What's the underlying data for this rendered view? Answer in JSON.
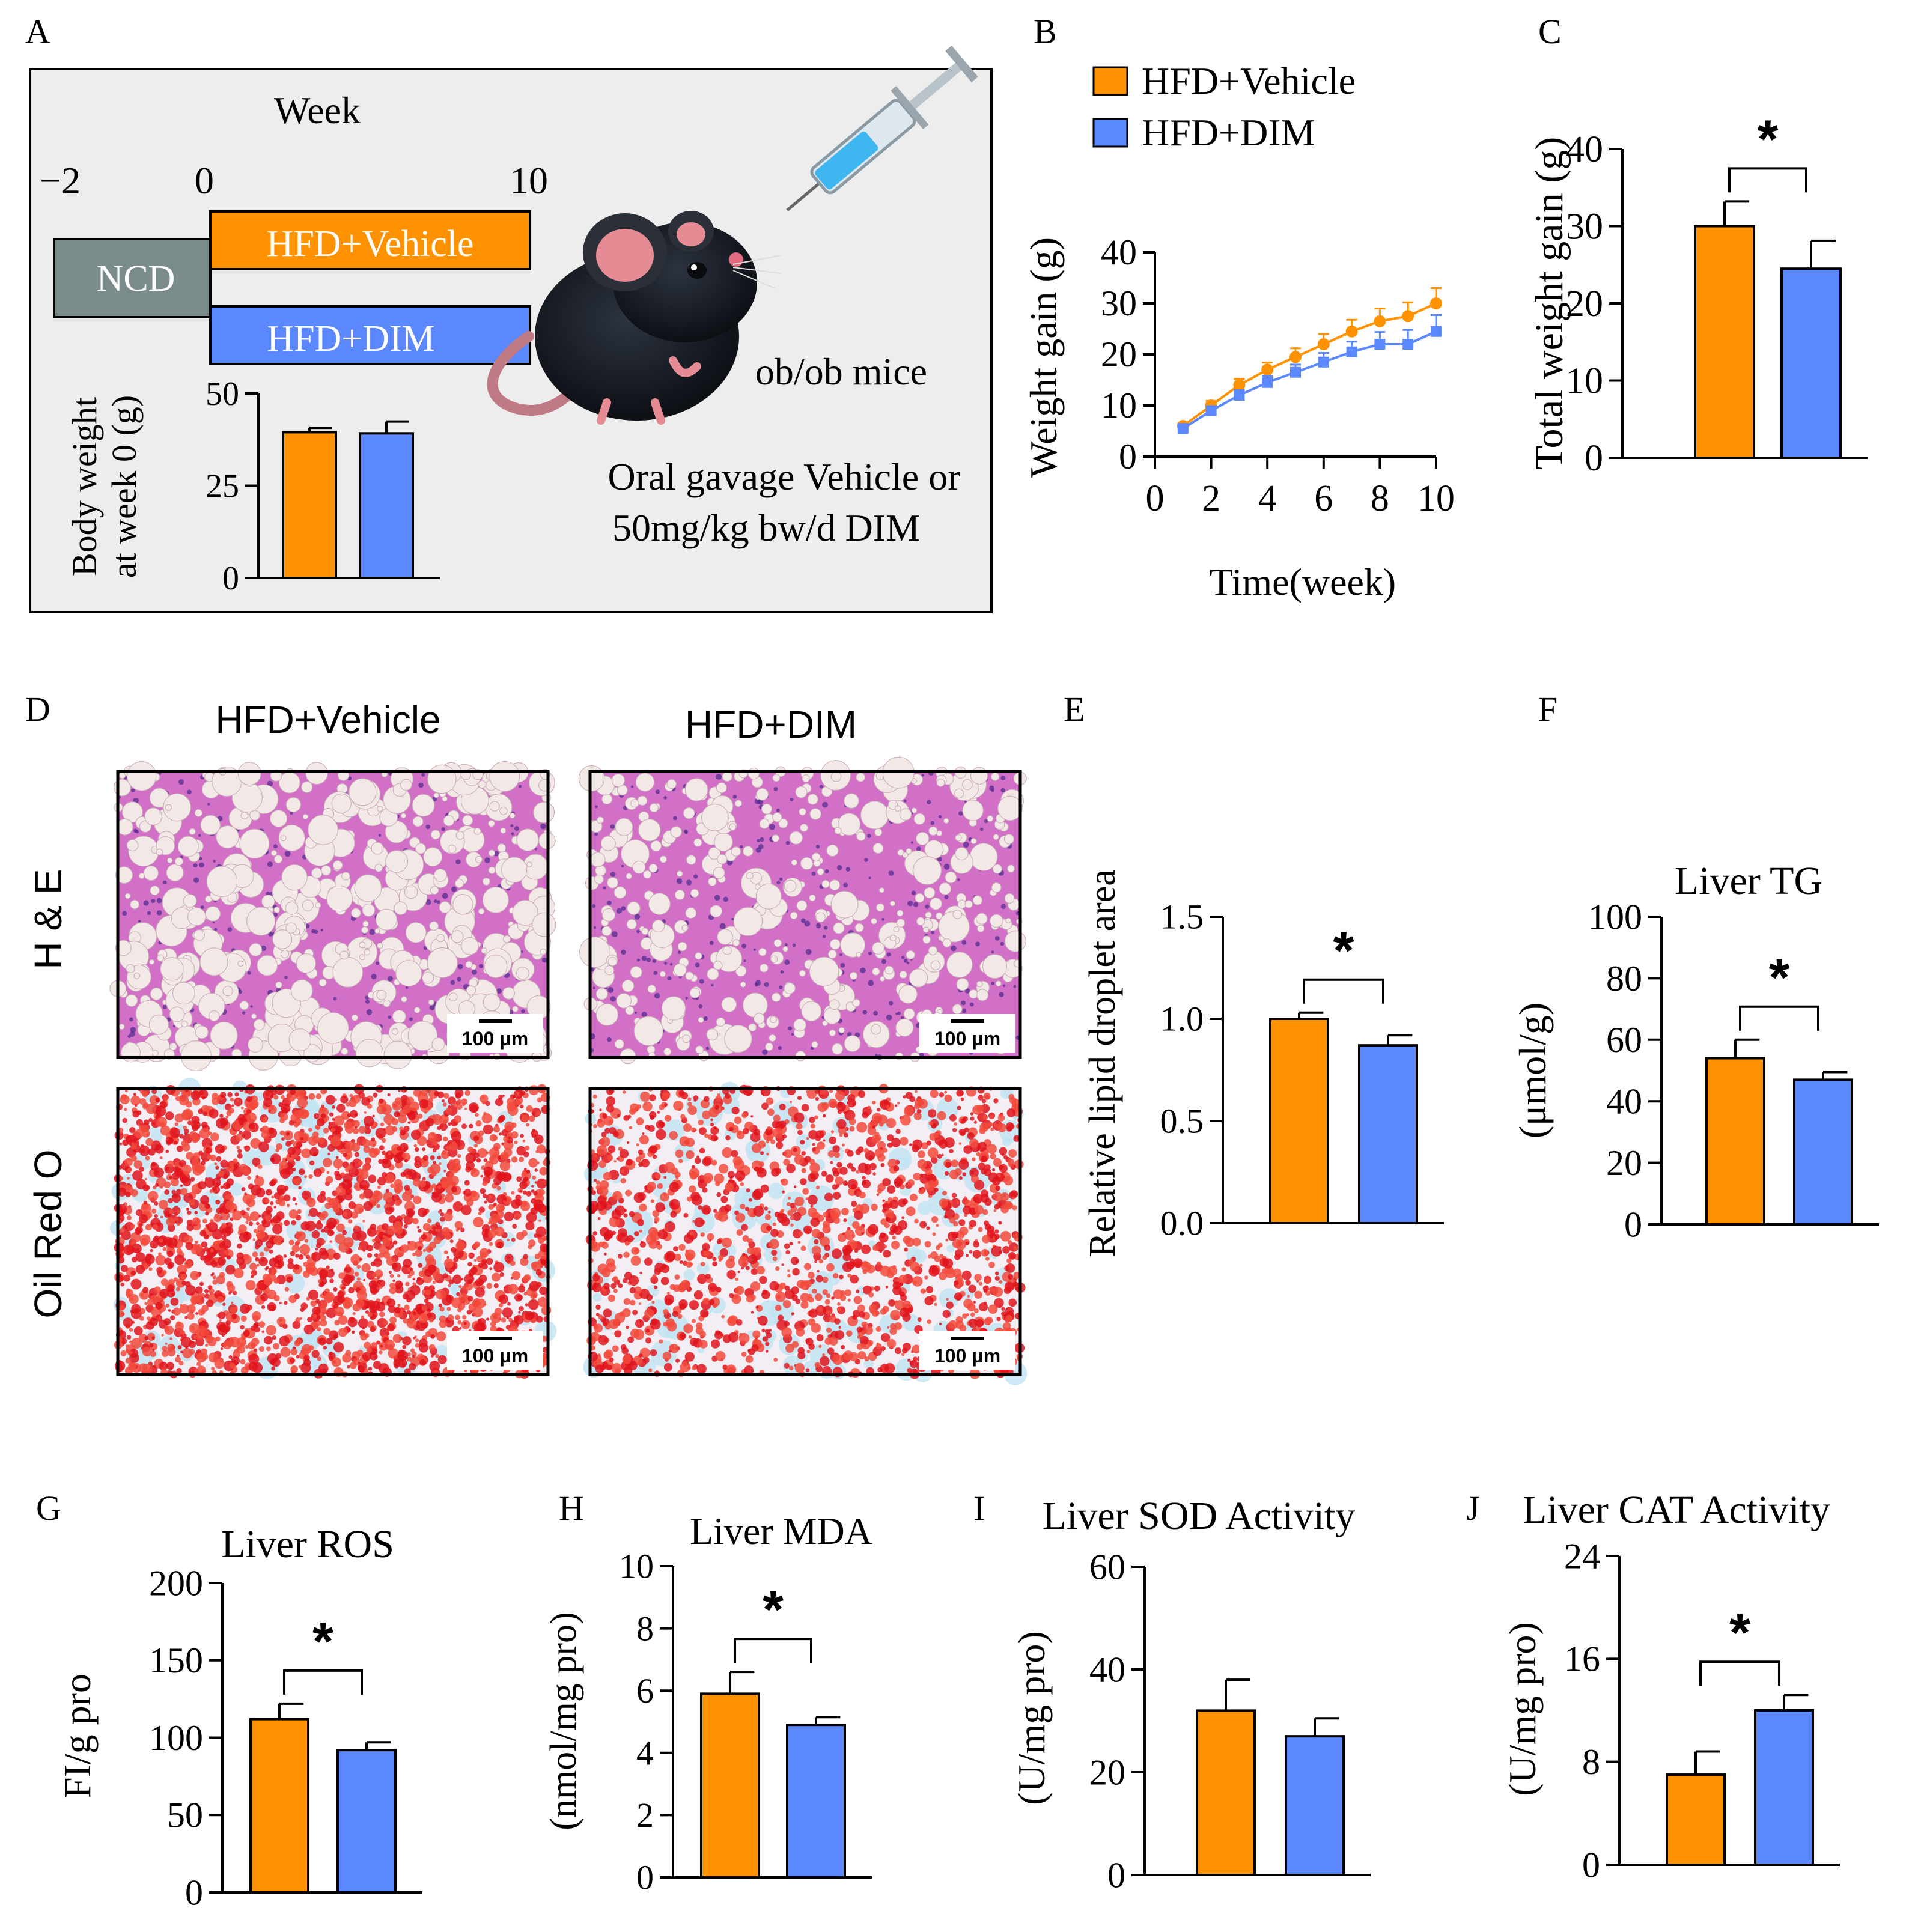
{
  "colors": {
    "vehicle": "#FF9200",
    "dim": "#5B87FF",
    "ncd": "#7A8B8C",
    "panel_bg": "#EDEDED",
    "axis": "#000000"
  },
  "panel_letters": [
    "A",
    "B",
    "C",
    "D",
    "E",
    "F",
    "G",
    "H",
    "I",
    "J"
  ],
  "panel_a": {
    "week_label": "Week",
    "ticks": [
      "−2",
      "0",
      "10"
    ],
    "ncd_label": "NCD",
    "vehicle_label": "HFD+Vehicle",
    "dim_label": "HFD+DIM",
    "mouse_label": "ob/ob mice",
    "gavage_line1": "Oral gavage Vehicle or",
    "gavage_line2": "50mg/kg bw/d DIM"
  },
  "legend": {
    "vehicle": "HFD+Vehicle",
    "dim": "HFD+DIM"
  },
  "histology": {
    "col_labels": [
      "HFD+Vehicle",
      "HFD+DIM"
    ],
    "row_labels": [
      "H & E",
      "Oil Red O"
    ],
    "scale_bar": "100 μm"
  },
  "chart_data": [
    {
      "id": "A_inset",
      "type": "bar",
      "ylabel_lines": [
        "Body weight",
        "at week 0 (g)"
      ],
      "categories": [
        "HFD+Vehicle",
        "HFD+DIM"
      ],
      "values": [
        39.5,
        39.2
      ],
      "errors": [
        1.2,
        3.2
      ],
      "ylim": [
        0,
        50
      ],
      "yticks": [
        0,
        25,
        50
      ],
      "tick_labels": [
        "0",
        "25",
        "50"
      ]
    },
    {
      "id": "B",
      "type": "line",
      "xlabel": "Time(week)",
      "ylabel": "Weight gain (g)",
      "xlim": [
        0,
        10
      ],
      "ylim": [
        0,
        40
      ],
      "xticks": [
        0,
        2,
        4,
        6,
        8,
        10
      ],
      "xtick_labels": [
        "0",
        "2",
        "4",
        "6",
        "8",
        "10"
      ],
      "yticks": [
        0,
        10,
        20,
        30,
        40
      ],
      "ytick_labels": [
        "0",
        "10",
        "20",
        "30",
        "40"
      ],
      "x": [
        1,
        2,
        3,
        4,
        5,
        6,
        7,
        8,
        9,
        10
      ],
      "series": [
        {
          "name": "HFD+Vehicle",
          "values": [
            6,
            10,
            14,
            17,
            19.5,
            22,
            24.5,
            26.5,
            27.5,
            30
          ],
          "errors": [
            0.6,
            0.9,
            1.2,
            1.4,
            1.7,
            2.0,
            2.3,
            2.5,
            2.7,
            3.0
          ]
        },
        {
          "name": "HFD+DIM",
          "values": [
            5.5,
            9,
            12,
            14.5,
            16.5,
            18.5,
            20.5,
            22,
            22,
            24.5
          ],
          "errors": [
            0.5,
            0.8,
            1.0,
            1.3,
            1.5,
            1.8,
            2.0,
            2.4,
            2.8,
            3.2
          ]
        }
      ]
    },
    {
      "id": "C",
      "type": "bar",
      "ylabel": "Total weight gain (g)",
      "title": "",
      "categories": [
        "HFD+Vehicle",
        "HFD+DIM"
      ],
      "values": [
        30,
        24.5
      ],
      "errors": [
        3.2,
        3.6
      ],
      "ylim": [
        0,
        40
      ],
      "yticks": [
        0,
        10,
        20,
        30,
        40
      ],
      "tick_labels": [
        "0",
        "10",
        "20",
        "30",
        "40"
      ],
      "significance": "*"
    },
    {
      "id": "E",
      "type": "bar",
      "ylabel": "Relative lipid droplet area",
      "title": "",
      "categories": [
        "HFD+Vehicle",
        "HFD+DIM"
      ],
      "values": [
        1.0,
        0.87
      ],
      "errors": [
        0.03,
        0.05
      ],
      "ylim": [
        0,
        1.5
      ],
      "yticks": [
        0,
        0.5,
        1.0,
        1.5
      ],
      "tick_labels": [
        "0.0",
        "0.5",
        "1.0",
        "1.5"
      ],
      "significance": "*"
    },
    {
      "id": "F",
      "type": "bar",
      "title": "Liver TG",
      "ylabel": "(μmol/g)",
      "categories": [
        "HFD+Vehicle",
        "HFD+DIM"
      ],
      "values": [
        54,
        47
      ],
      "errors": [
        6,
        2.5
      ],
      "ylim": [
        0,
        100
      ],
      "yticks": [
        0,
        20,
        40,
        60,
        80,
        100
      ],
      "tick_labels": [
        "0",
        "20",
        "40",
        "60",
        "80",
        "100"
      ],
      "significance": "*"
    },
    {
      "id": "G",
      "type": "bar",
      "title": "Liver ROS",
      "ylabel": "FI/g pro",
      "categories": [
        "HFD+Vehicle",
        "HFD+DIM"
      ],
      "values": [
        112,
        92
      ],
      "errors": [
        10,
        5
      ],
      "ylim": [
        0,
        200
      ],
      "yticks": [
        0,
        50,
        100,
        150,
        200
      ],
      "tick_labels": [
        "0",
        "50",
        "100",
        "150",
        "200"
      ],
      "significance": "*"
    },
    {
      "id": "H",
      "type": "bar",
      "title": "Liver MDA",
      "ylabel": "(nmol/mg pro)",
      "categories": [
        "HFD+Vehicle",
        "HFD+DIM"
      ],
      "values": [
        5.9,
        4.9
      ],
      "errors": [
        0.7,
        0.25
      ],
      "ylim": [
        0,
        10
      ],
      "yticks": [
        0,
        2,
        4,
        6,
        8,
        10
      ],
      "tick_labels": [
        "0",
        "2",
        "4",
        "6",
        "8",
        "10"
      ],
      "significance": "*"
    },
    {
      "id": "I",
      "type": "bar",
      "title": "Liver SOD Activity",
      "ylabel": "(U/mg pro)",
      "categories": [
        "HFD+Vehicle",
        "HFD+DIM"
      ],
      "values": [
        32,
        27
      ],
      "errors": [
        6,
        3.5
      ],
      "ylim": [
        0,
        60
      ],
      "yticks": [
        0,
        20,
        40,
        60
      ],
      "tick_labels": [
        "0",
        "20",
        "40",
        "60"
      ],
      "significance": ""
    },
    {
      "id": "J",
      "type": "bar",
      "title": "Liver CAT Activity",
      "ylabel": "(U/mg pro)",
      "categories": [
        "HFD+Vehicle",
        "HFD+DIM"
      ],
      "values": [
        7,
        12
      ],
      "errors": [
        1.8,
        1.2
      ],
      "ylim": [
        0,
        24
      ],
      "yticks": [
        0,
        8,
        16,
        24
      ],
      "tick_labels": [
        "0",
        "8",
        "16",
        "24"
      ],
      "significance": "*"
    }
  ]
}
